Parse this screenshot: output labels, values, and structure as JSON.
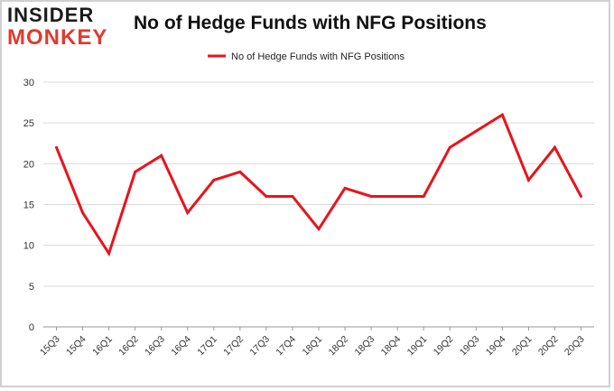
{
  "logo": {
    "line1": "INSIDER",
    "line2": "MONKEY"
  },
  "chart_data": {
    "type": "line",
    "title": "No of Hedge Funds with NFG Positions",
    "categories": [
      "15Q3",
      "15Q4",
      "16Q1",
      "16Q2",
      "16Q3",
      "16Q4",
      "17Q1",
      "17Q2",
      "17Q3",
      "17Q4",
      "18Q1",
      "18Q2",
      "18Q3",
      "18Q4",
      "19Q1",
      "19Q2",
      "19Q3",
      "19Q4",
      "20Q1",
      "20Q2",
      "20Q3"
    ],
    "series": [
      {
        "name": "No of Hedge Funds with NFG Positions",
        "values": [
          22,
          14,
          9,
          19,
          21,
          14,
          18,
          19,
          16,
          16,
          12,
          17,
          16,
          16,
          16,
          22,
          24,
          26,
          18,
          22,
          16
        ],
        "color": "#e8141c"
      }
    ],
    "ylim": [
      0,
      30
    ],
    "yticks": [
      "0",
      "5",
      "10",
      "15",
      "20",
      "25",
      "30"
    ],
    "xlabel": "",
    "ylabel": "",
    "grid": true,
    "legend_position": "top"
  }
}
